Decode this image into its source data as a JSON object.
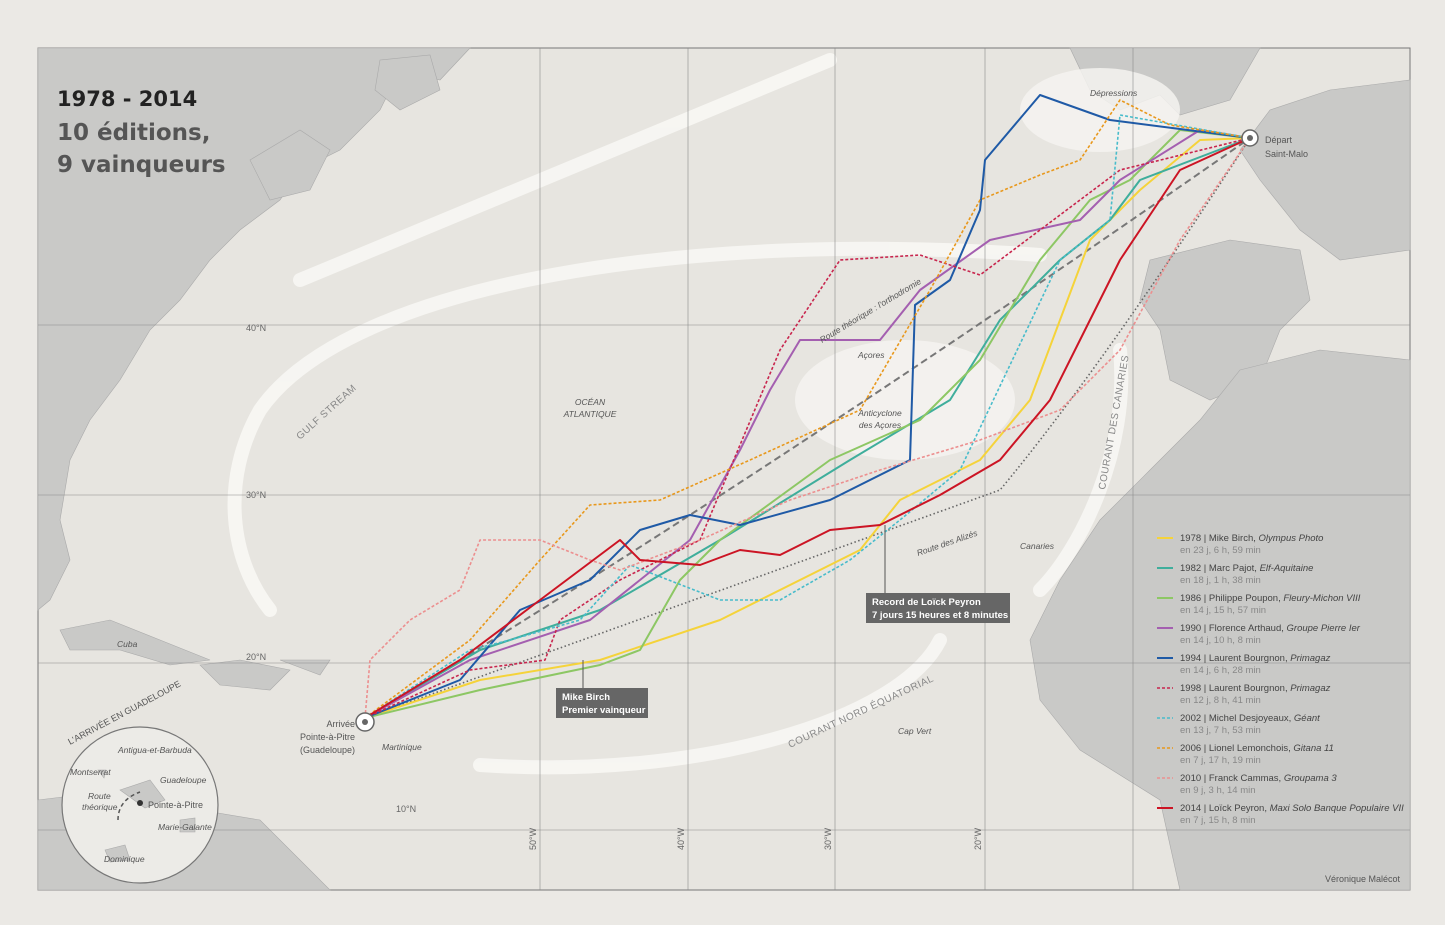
{
  "header": {
    "years": "1978 - 2014",
    "line1": "10 éditions,",
    "line2": "9 vainqueurs"
  },
  "labels": {
    "depressions": "Dépressions",
    "depart": "Départ",
    "saint_malo": "Saint-Malo",
    "orthodromie": "Route théorique : l'orthodromie",
    "acores": "Açores",
    "anticyclone1": "Anticyclone",
    "anticyclone2": "des Açores",
    "ocean1": "OCÉAN",
    "ocean2": "ATLANTIQUE",
    "gulf_stream": "GULF STREAM",
    "canaries_current": "COURANT DES CANARIES",
    "canaries": "Canaries",
    "alizes": "Route des Alizés",
    "equatorial": "COURANT NORD ÉQUATORIAL",
    "cap_vert": "Cap Vert",
    "arrivee": "Arrivée",
    "pointe_a_pitre": "Pointe-à-Pitre",
    "guadeloupe": "(Guadeloupe)",
    "martinique": "Martinique",
    "cuba": "Cuba",
    "credit": "Véronique Malécot"
  },
  "callouts": {
    "peyron": [
      "Record de Loïck Peyron",
      "7 jours 15 heures et 8 minutes"
    ],
    "birch": [
      "Mike Birch",
      "Premier vainqueur"
    ]
  },
  "graticule": {
    "lat": [
      "40°N",
      "30°N",
      "20°N",
      "10°N"
    ],
    "lon": [
      "50°W",
      "40°W",
      "30°W",
      "20°W"
    ]
  },
  "inset": {
    "title": "L'ARRIVÉE EN GUADELOUPE",
    "antigua": "Antigua-et-Barbuda",
    "montserrat": "Montserrat",
    "guadeloupe": "Guadeloupe",
    "route": [
      "Route",
      "théorique"
    ],
    "pap": "Pointe-à-Pitre",
    "marie_galante": "Marie-Galante",
    "dominique": "Dominique"
  },
  "legend": [
    {
      "label": "1978 | Mike Birch, ",
      "boat": "Olympus Photo",
      "time": "en 23 j, 6 h, 59 min",
      "color": "#f5d33a",
      "dashed": false
    },
    {
      "label": "1982 | Marc Pajot, ",
      "boat": "Elf-Aquitaine",
      "time": "en 18 j, 1 h, 38 min",
      "color": "#3fae9c",
      "dashed": false
    },
    {
      "label": "1986 | Philippe Poupon, ",
      "boat": "Fleury-Michon VIII",
      "time": "en 14 j, 15 h, 57 min",
      "color": "#8dc764",
      "dashed": false
    },
    {
      "label": "1990 | Florence Arthaud, ",
      "boat": "Groupe Pierre Ier",
      "time": "en 14 j, 10 h, 8 min",
      "color": "#a45fb0",
      "dashed": false
    },
    {
      "label": "1994 | Laurent Bourgnon, ",
      "boat": "Primagaz",
      "time": "en 14 j, 6 h, 28 min",
      "color": "#1f5aa6",
      "dashed": false
    },
    {
      "label": "1998 | Laurent Bourgnon, ",
      "boat": "Primagaz",
      "time": "en 12 j, 8 h, 41 min",
      "color": "#c8264e",
      "dashed": true
    },
    {
      "label": "2002 | Michel Desjoyeaux, ",
      "boat": "Géant",
      "time": "en 13 j, 7 h, 53 min",
      "color": "#48bccb",
      "dashed": true
    },
    {
      "label": "2006 | Lionel Lemonchois, ",
      "boat": "Gitana 11",
      "time": "en 7 j, 17 h, 19 min",
      "color": "#e8981c",
      "dashed": true
    },
    {
      "label": "2010 | Franck Cammas, ",
      "boat": "Groupama 3",
      "time": "en 9 j, 3 h, 14 min",
      "color": "#ec8f8f",
      "dashed": true
    },
    {
      "label": "2014 | Loïck Peyron, ",
      "boat": "Maxi Solo Banque Populaire VII",
      "time": "en 7 j, 15 h, 8 min",
      "color": "#cc1424",
      "dashed": false
    }
  ]
}
